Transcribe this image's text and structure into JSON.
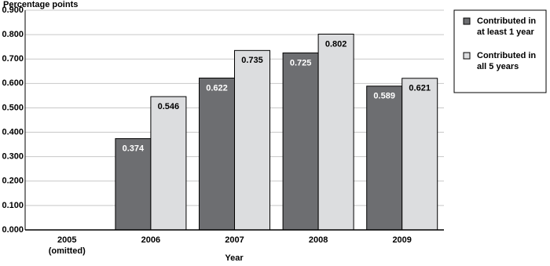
{
  "chart_data": {
    "type": "bar",
    "y_label": "Percentage points",
    "x_label": "Year",
    "categories": [
      "2005\n(omitted)",
      "2006",
      "2007",
      "2008",
      "2009"
    ],
    "series": [
      {
        "name": "Contributed in\nat least 1 year",
        "color": "#6d6e71",
        "values": [
          null,
          0.374,
          0.622,
          0.725,
          0.589
        ]
      },
      {
        "name": "Contributed in\nall 5 years",
        "color": "#dcdddf",
        "values": [
          null,
          0.546,
          0.735,
          0.802,
          0.621
        ]
      }
    ],
    "ylim": [
      0,
      0.9
    ],
    "yticks": [
      {
        "value": 0,
        "label": "0.000"
      },
      {
        "value": 0.1,
        "label": "0.100"
      },
      {
        "value": 0.2,
        "label": "0.200"
      },
      {
        "value": 0.3,
        "label": "0.300"
      },
      {
        "value": 0.4,
        "label": "0.400"
      },
      {
        "value": 0.5,
        "label": "0.500"
      },
      {
        "value": 0.6,
        "label": "0.600"
      },
      {
        "value": 0.7,
        "label": "0.700"
      },
      {
        "value": 0.8,
        "label": "0.800"
      },
      {
        "value": 0.9,
        "label": "0.900"
      }
    ],
    "grid": true
  }
}
